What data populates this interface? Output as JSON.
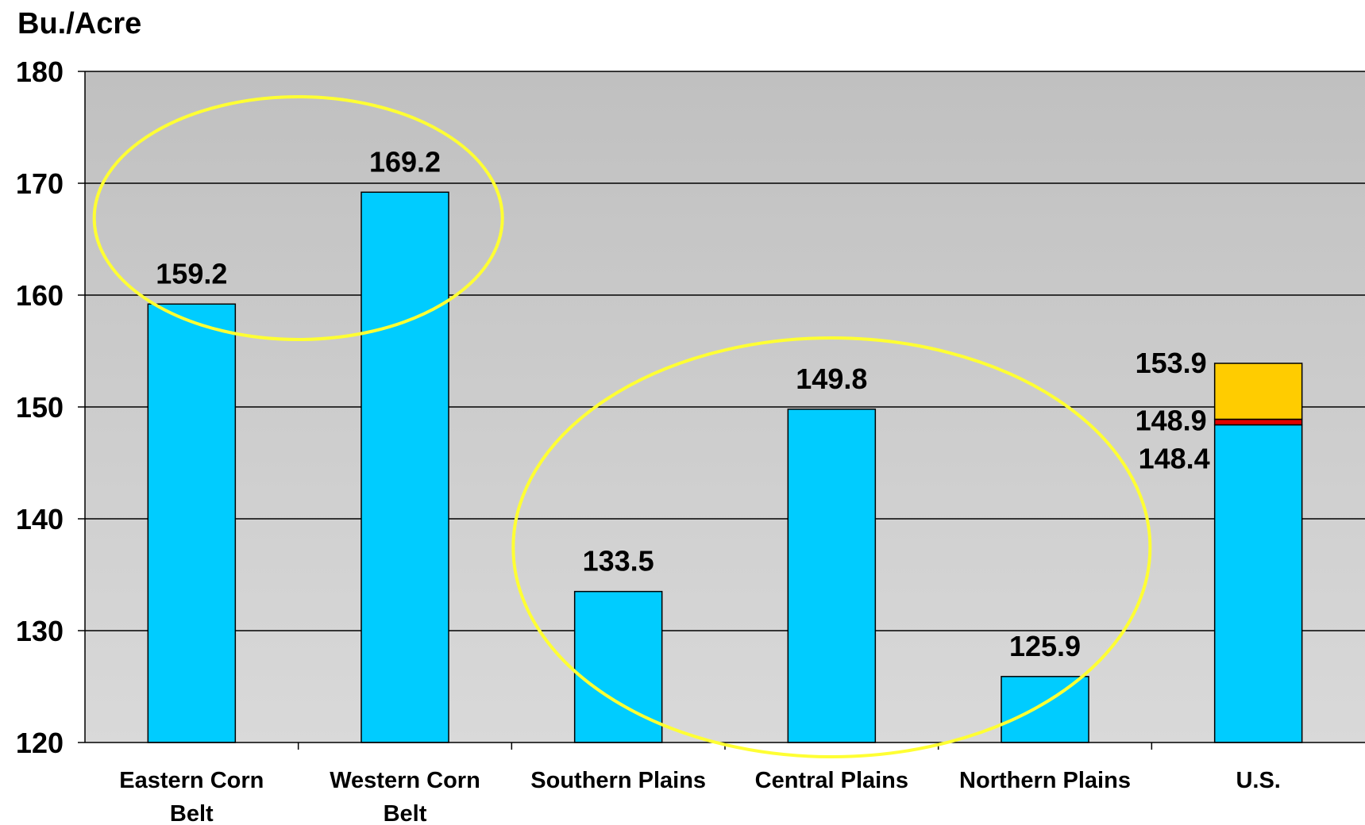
{
  "chart_data": {
    "type": "bar",
    "ylabel": "Bu./Acre",
    "ylim": [
      120,
      180
    ],
    "yticks": [
      "120",
      "130",
      "140",
      "150",
      "160",
      "170",
      "180"
    ],
    "grid": true,
    "categories": [
      [
        "Eastern Corn",
        "Belt"
      ],
      [
        "Western Corn",
        "Belt"
      ],
      [
        "Southern Plains"
      ],
      [
        "Central Plains"
      ],
      [
        "Northern Plains"
      ],
      [
        "U.S."
      ]
    ],
    "values": [
      159.2,
      169.2,
      133.5,
      149.8,
      125.9,
      148.4
    ],
    "value_labels": [
      "159.2",
      "169.2",
      "133.5",
      "149.8",
      "125.9",
      "148.4"
    ],
    "us_stack": {
      "segments": [
        {
          "from": 148.4,
          "to": 148.9,
          "color": "#e00000",
          "label": "148.9"
        },
        {
          "from": 148.9,
          "to": 153.9,
          "color": "#ffcc00",
          "label": "153.9"
        }
      ]
    },
    "colors": {
      "bar": "#00ccff",
      "plot_background_top": "#c0c0c0",
      "plot_background_bottom": "#d9d9d9",
      "highlight_ellipse": "#ffff33"
    },
    "highlight_groups": [
      [
        "Eastern Corn Belt",
        "Western Corn Belt"
      ],
      [
        "Southern Plains",
        "Central Plains",
        "Northern Plains"
      ]
    ]
  }
}
